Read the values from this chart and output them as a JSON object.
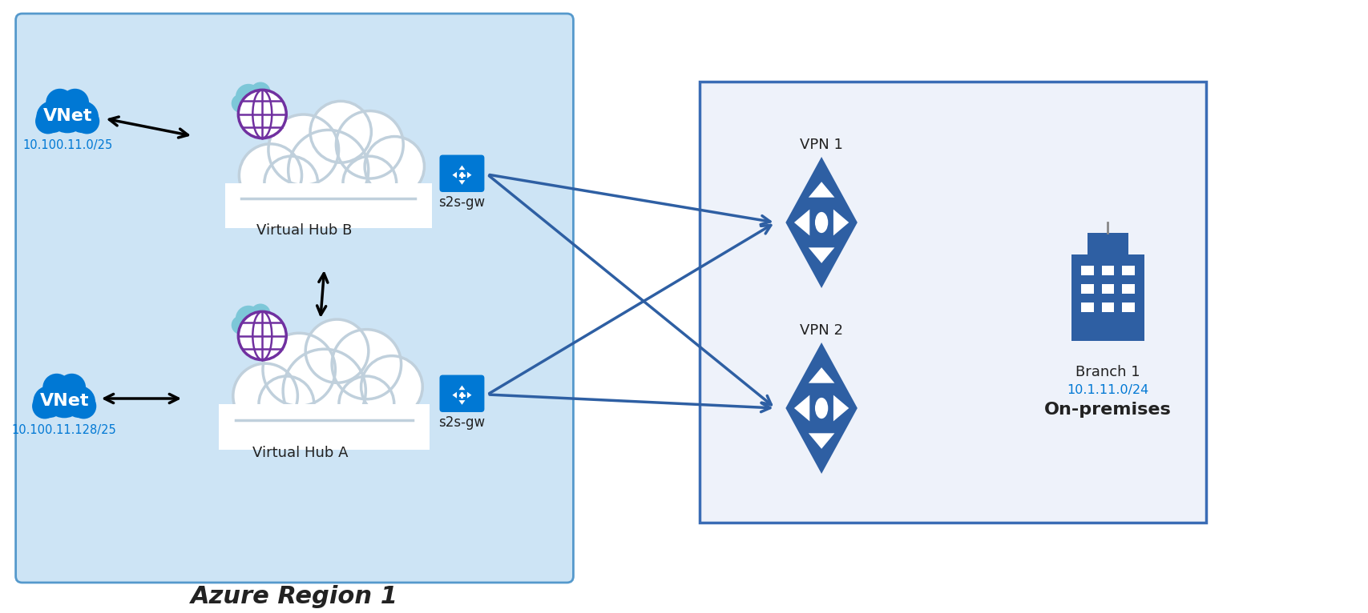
{
  "bg_azure_color": "#cde4f5",
  "bg_azure_border": "#5599cc",
  "bg_onprem_color": "#eef2fa",
  "bg_onprem_border": "#3a6cb5",
  "cloud_fill": "#ffffff",
  "cloud_border": "#c0d8e8",
  "vnet_color": "#0078d4",
  "lock_color": "#0078d4",
  "vpn_color": "#2e5fa3",
  "arrow_color": "#2e5fa3",
  "text_blue": "#0078d4",
  "text_dark": "#222222",
  "title_azure": "Azure Region 1",
  "hub_b_label": "Virtual Hub B",
  "hub_a_label": "Virtual Hub A",
  "s2s_label": "s2s-gw",
  "vnet_label": "VNet",
  "vpn1_label": "VPN 1",
  "vpn2_label": "VPN 2",
  "branch_label": "Branch 1",
  "onprem_label": "On-premises",
  "ip_vnet_b": "10.100.11.0/25",
  "ip_vnet_a": "10.100.11.128/25",
  "ip_branch": "10.1.11.0/24",
  "teal_cloud": "#7dc7d8",
  "purple_globe": "#7030a0",
  "wan_cloud_light": "#a0d4e0"
}
